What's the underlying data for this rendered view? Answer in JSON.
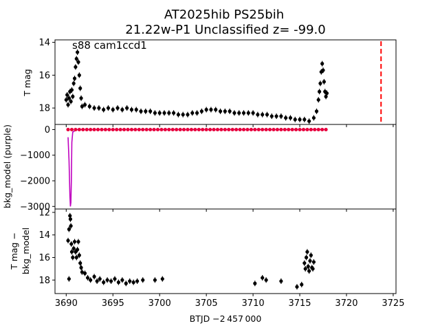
{
  "figure": {
    "title_line1": "AT2025hib  PS25bih",
    "title_line2": "21.22w-P1 Unclassified z= -99.0",
    "annotation": "s88 cam1ccd1",
    "xlabel": "BTJD −2 457 000"
  },
  "chart_data": [
    {
      "panel": "top",
      "type": "scatter",
      "ylabel": "T mag",
      "y_inverted": true,
      "xlim": [
        3688.8,
        3725.3
      ],
      "ylim": [
        13.85,
        19.0
      ],
      "yticks": [
        14,
        16,
        18
      ],
      "marker_color": "#000000",
      "vline": {
        "x": 3723.7,
        "color": "#ff0000",
        "style": "dashed"
      },
      "series": [
        {
          "values": [
            [
              3690.0,
              17.5
            ],
            [
              3690.1,
              17.2
            ],
            [
              3690.2,
              17.8
            ],
            [
              3690.3,
              17.4
            ],
            [
              3690.4,
              17.0
            ],
            [
              3690.5,
              17.6
            ],
            [
              3690.6,
              16.9
            ],
            [
              3690.7,
              17.3
            ],
            [
              3690.8,
              16.5
            ],
            [
              3690.9,
              16.2
            ],
            [
              3691.0,
              15.5
            ],
            [
              3691.1,
              15.0
            ],
            [
              3691.2,
              14.6
            ],
            [
              3691.3,
              15.2
            ],
            [
              3691.4,
              16.0
            ],
            [
              3691.5,
              16.8
            ],
            [
              3691.6,
              17.4
            ],
            [
              3691.7,
              17.9
            ],
            [
              3692.0,
              17.8
            ],
            [
              3692.5,
              17.9
            ],
            [
              3693.0,
              18.0
            ],
            [
              3693.5,
              18.0
            ],
            [
              3694.0,
              18.1
            ],
            [
              3694.5,
              18.0
            ],
            [
              3695.0,
              18.1
            ],
            [
              3695.5,
              18.0
            ],
            [
              3696.0,
              18.1
            ],
            [
              3696.5,
              18.0
            ],
            [
              3697.0,
              18.1
            ],
            [
              3697.5,
              18.1
            ],
            [
              3698.0,
              18.2
            ],
            [
              3698.5,
              18.2
            ],
            [
              3699.0,
              18.2
            ],
            [
              3699.5,
              18.3
            ],
            [
              3700.0,
              18.3
            ],
            [
              3700.5,
              18.3
            ],
            [
              3701.0,
              18.3
            ],
            [
              3701.5,
              18.3
            ],
            [
              3702.0,
              18.4
            ],
            [
              3702.5,
              18.4
            ],
            [
              3703.0,
              18.4
            ],
            [
              3703.5,
              18.3
            ],
            [
              3704.0,
              18.3
            ],
            [
              3704.5,
              18.2
            ],
            [
              3705.0,
              18.1
            ],
            [
              3705.5,
              18.1
            ],
            [
              3706.0,
              18.1
            ],
            [
              3706.5,
              18.2
            ],
            [
              3707.0,
              18.2
            ],
            [
              3707.5,
              18.2
            ],
            [
              3708.0,
              18.3
            ],
            [
              3708.5,
              18.3
            ],
            [
              3709.0,
              18.3
            ],
            [
              3709.5,
              18.3
            ],
            [
              3710.0,
              18.3
            ],
            [
              3710.5,
              18.4
            ],
            [
              3711.0,
              18.4
            ],
            [
              3711.5,
              18.4
            ],
            [
              3712.0,
              18.5
            ],
            [
              3712.5,
              18.5
            ],
            [
              3713.0,
              18.5
            ],
            [
              3713.5,
              18.6
            ],
            [
              3714.0,
              18.6
            ],
            [
              3714.5,
              18.7
            ],
            [
              3715.0,
              18.7
            ],
            [
              3715.5,
              18.7
            ],
            [
              3716.0,
              18.8
            ],
            [
              3716.5,
              18.6
            ],
            [
              3716.8,
              18.2
            ],
            [
              3717.0,
              17.5
            ],
            [
              3717.1,
              17.0
            ],
            [
              3717.2,
              16.5
            ],
            [
              3717.3,
              15.8
            ],
            [
              3717.4,
              15.3
            ],
            [
              3717.5,
              15.7
            ],
            [
              3717.6,
              16.4
            ],
            [
              3717.7,
              17.0
            ],
            [
              3717.8,
              17.3
            ],
            [
              3717.9,
              17.1
            ]
          ]
        }
      ]
    },
    {
      "panel": "middle",
      "type": "line",
      "ylabel": "bkg_model (purple)",
      "xlim": [
        3688.8,
        3725.3
      ],
      "ylim": [
        -3100,
        200
      ],
      "yticks": [
        0,
        -1000,
        -2000,
        -3000
      ],
      "series": [
        {
          "color": "#bf00bf",
          "values": [
            [
              3690.2,
              -300
            ],
            [
              3690.3,
              -1200
            ],
            [
              3690.4,
              -2600
            ],
            [
              3690.45,
              -3000
            ],
            [
              3690.5,
              -2850
            ],
            [
              3690.55,
              -2000
            ],
            [
              3690.6,
              -500
            ],
            [
              3690.7,
              -100
            ],
            [
              3690.9,
              -50
            ],
            [
              3691.2,
              -5
            ],
            [
              3691.6,
              0
            ],
            [
              3692.0,
              0
            ],
            [
              3700.0,
              0
            ],
            [
              3710.0,
              0
            ],
            [
              3717.9,
              0
            ]
          ]
        },
        {
          "color": "#e8003c",
          "values": [
            [
              3690.2,
              0
            ],
            [
              3690.6,
              0
            ],
            [
              3691.0,
              0
            ],
            [
              3691.4,
              0
            ],
            [
              3691.8,
              0
            ],
            [
              3692.2,
              0
            ],
            [
              3692.6,
              0
            ],
            [
              3693.0,
              0
            ],
            [
              3693.4,
              0
            ],
            [
              3693.8,
              0
            ],
            [
              3694.2,
              0
            ],
            [
              3694.6,
              0
            ],
            [
              3695.0,
              0
            ],
            [
              3695.4,
              0
            ],
            [
              3695.8,
              0
            ],
            [
              3696.2,
              0
            ],
            [
              3696.6,
              0
            ],
            [
              3697.0,
              0
            ],
            [
              3697.4,
              0
            ],
            [
              3697.8,
              0
            ],
            [
              3698.2,
              0
            ],
            [
              3698.6,
              0
            ],
            [
              3699.0,
              0
            ],
            [
              3699.4,
              0
            ],
            [
              3699.8,
              0
            ],
            [
              3700.2,
              0
            ],
            [
              3700.6,
              0
            ],
            [
              3701.0,
              0
            ],
            [
              3701.4,
              0
            ],
            [
              3701.8,
              0
            ],
            [
              3702.2,
              0
            ],
            [
              3702.6,
              0
            ],
            [
              3703.0,
              0
            ],
            [
              3703.4,
              0
            ],
            [
              3703.8,
              0
            ],
            [
              3704.2,
              0
            ],
            [
              3704.6,
              0
            ],
            [
              3705.0,
              0
            ],
            [
              3705.4,
              0
            ],
            [
              3705.8,
              0
            ],
            [
              3706.2,
              0
            ],
            [
              3706.6,
              0
            ],
            [
              3707.0,
              0
            ],
            [
              3707.4,
              0
            ],
            [
              3707.8,
              0
            ],
            [
              3708.2,
              0
            ],
            [
              3708.6,
              0
            ],
            [
              3709.0,
              0
            ],
            [
              3709.4,
              0
            ],
            [
              3709.8,
              0
            ],
            [
              3710.2,
              0
            ],
            [
              3710.6,
              0
            ],
            [
              3711.0,
              0
            ],
            [
              3711.4,
              0
            ],
            [
              3711.8,
              0
            ],
            [
              3712.2,
              0
            ],
            [
              3712.6,
              0
            ],
            [
              3713.0,
              0
            ],
            [
              3713.4,
              0
            ],
            [
              3713.8,
              0
            ],
            [
              3714.2,
              0
            ],
            [
              3714.6,
              0
            ],
            [
              3715.0,
              0
            ],
            [
              3715.4,
              0
            ],
            [
              3715.8,
              0
            ],
            [
              3716.2,
              0
            ],
            [
              3716.6,
              0
            ],
            [
              3717.0,
              0
            ],
            [
              3717.4,
              0
            ],
            [
              3717.8,
              0
            ]
          ]
        }
      ]
    },
    {
      "panel": "bottom",
      "type": "scatter",
      "ylabel_line1": "T mag −",
      "ylabel_line2": "bkg_model",
      "y_inverted": true,
      "xlim": [
        3688.8,
        3725.3
      ],
      "ylim": [
        11.7,
        19.2
      ],
      "yticks": [
        12,
        14,
        16,
        18
      ],
      "xticks": [
        3690,
        3695,
        3700,
        3705,
        3710,
        3715,
        3720,
        3725
      ],
      "marker_color": "#000000",
      "series": [
        {
          "values": [
            [
              3690.2,
              14.5
            ],
            [
              3690.3,
              13.5
            ],
            [
              3690.4,
              12.3
            ],
            [
              3690.45,
              12.6
            ],
            [
              3690.5,
              13.2
            ],
            [
              3690.55,
              14.8
            ],
            [
              3690.6,
              15.5
            ],
            [
              3690.7,
              16.0
            ],
            [
              3690.8,
              15.2
            ],
            [
              3690.9,
              14.6
            ],
            [
              3691.0,
              15.5
            ],
            [
              3691.1,
              16.0
            ],
            [
              3691.2,
              15.3
            ],
            [
              3691.3,
              14.6
            ],
            [
              3691.4,
              15.8
            ],
            [
              3691.5,
              16.5
            ],
            [
              3691.6,
              16.9
            ],
            [
              3691.7,
              17.3
            ],
            [
              3690.3,
              17.9
            ],
            [
              3692.0,
              17.4
            ],
            [
              3692.3,
              17.8
            ],
            [
              3692.6,
              18.0
            ],
            [
              3693.0,
              17.7
            ],
            [
              3693.3,
              18.1
            ],
            [
              3693.6,
              17.9
            ],
            [
              3694.0,
              18.2
            ],
            [
              3694.4,
              18.0
            ],
            [
              3694.8,
              18.1
            ],
            [
              3695.2,
              17.9
            ],
            [
              3695.6,
              18.2
            ],
            [
              3696.0,
              18.0
            ],
            [
              3696.4,
              18.3
            ],
            [
              3696.8,
              18.1
            ],
            [
              3697.2,
              18.2
            ],
            [
              3697.6,
              18.1
            ],
            [
              3698.2,
              18.0
            ],
            [
              3699.5,
              18.0
            ],
            [
              3700.3,
              17.9
            ],
            [
              3710.2,
              18.3
            ],
            [
              3711.0,
              17.8
            ],
            [
              3711.4,
              18.0
            ],
            [
              3713.0,
              18.1
            ],
            [
              3714.7,
              18.6
            ],
            [
              3715.2,
              18.4
            ],
            [
              3715.5,
              16.5
            ],
            [
              3715.6,
              17.0
            ],
            [
              3715.7,
              16.0
            ],
            [
              3715.8,
              15.5
            ],
            [
              3715.9,
              16.8
            ],
            [
              3716.0,
              17.2
            ],
            [
              3716.1,
              16.3
            ],
            [
              3716.2,
              15.8
            ],
            [
              3716.3,
              16.9
            ],
            [
              3716.4,
              17.0
            ],
            [
              3716.5,
              16.4
            ]
          ]
        }
      ]
    }
  ]
}
